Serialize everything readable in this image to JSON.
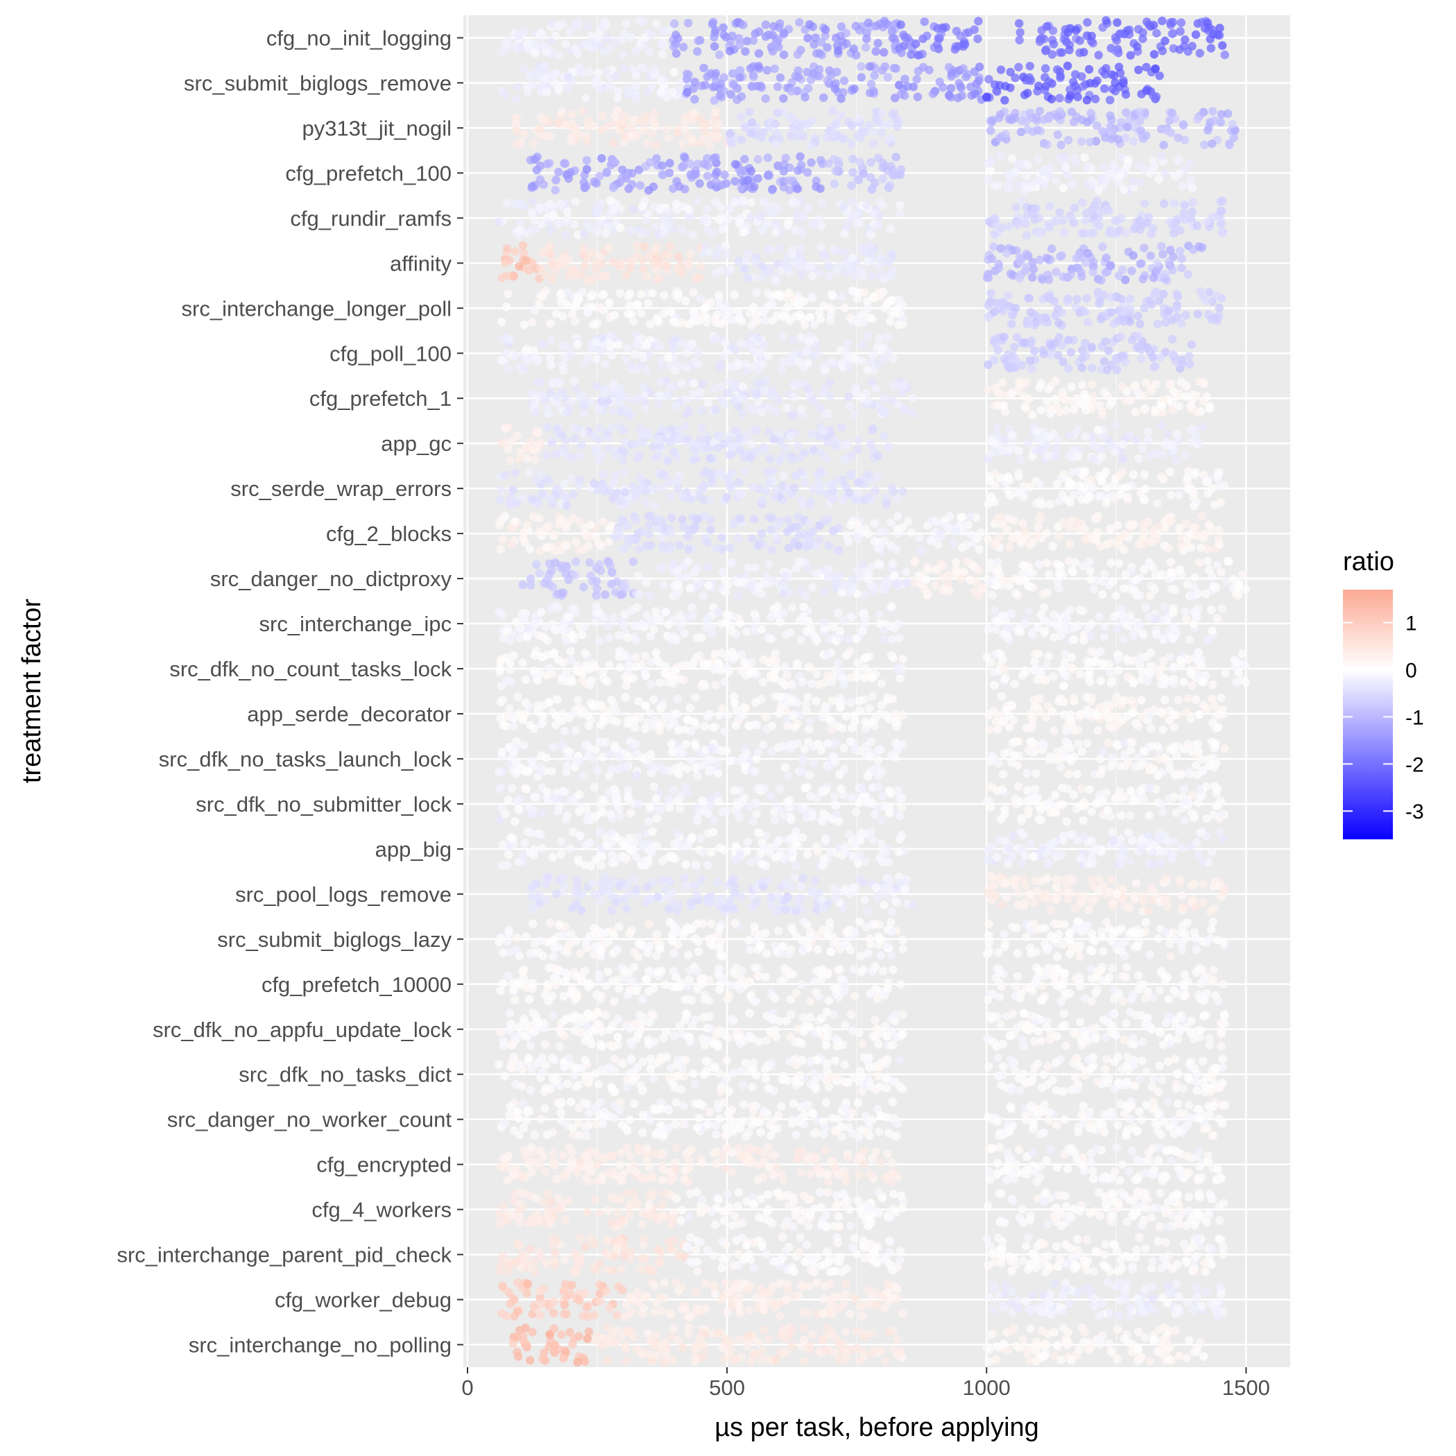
{
  "chart_data": {
    "type": "scatter",
    "title": "",
    "xlabel": "µs per task, before applying",
    "ylabel": "treatment factor",
    "xlim": [
      -8,
      1585
    ],
    "x_ticks": [
      0,
      500,
      1000,
      1500
    ],
    "x_tick_labels": [
      "0",
      "500",
      "1000",
      "1500"
    ],
    "grid": true,
    "background": "#ebebeb",
    "categories": [
      "cfg_no_init_logging",
      "src_submit_biglogs_remove",
      "py313t_jit_nogil",
      "cfg_prefetch_100",
      "cfg_rundir_ramfs",
      "affinity",
      "src_interchange_longer_poll",
      "cfg_poll_100",
      "cfg_prefetch_1",
      "app_gc",
      "src_serde_wrap_errors",
      "cfg_2_blocks",
      "src_danger_no_dictproxy",
      "src_interchange_ipc",
      "src_dfk_no_count_tasks_lock",
      "app_serde_decorator",
      "src_dfk_no_tasks_launch_lock",
      "src_dfk_no_submitter_lock",
      "app_big",
      "src_pool_logs_remove",
      "src_submit_biglogs_lazy",
      "cfg_prefetch_10000",
      "src_dfk_no_appfu_update_lock",
      "src_dfk_no_tasks_dict",
      "src_danger_no_worker_count",
      "cfg_encrypted",
      "cfg_4_workers",
      "src_interchange_parent_pid_check",
      "cfg_worker_debug",
      "src_interchange_no_polling"
    ],
    "clusters": [
      [
        {
          "x": [
            60,
            390
          ],
          "r": -0.2
        },
        {
          "x": [
            390,
            830
          ],
          "r": -1.4
        },
        {
          "x": [
            830,
            990
          ],
          "r": -1.8
        },
        {
          "x": [
            1060,
            1460
          ],
          "r": -2.1
        }
      ],
      [
        {
          "x": [
            60,
            420
          ],
          "r": -0.2
        },
        {
          "x": [
            420,
            830
          ],
          "r": -1.3
        },
        {
          "x": [
            830,
            1000
          ],
          "r": -1.5
        },
        {
          "x": [
            1000,
            1340
          ],
          "r": -2.2
        }
      ],
      [
        {
          "x": [
            90,
            500
          ],
          "r": 0.4
        },
        {
          "x": [
            500,
            840
          ],
          "r": -0.5
        },
        {
          "x": [
            1000,
            1480
          ],
          "r": -1.0
        }
      ],
      [
        {
          "x": [
            100,
            690
          ],
          "r": -1.3
        },
        {
          "x": [
            690,
            840
          ],
          "r": -0.8
        },
        {
          "x": [
            1000,
            1400
          ],
          "r": -0.2
        }
      ],
      [
        {
          "x": [
            60,
            840
          ],
          "r": -0.2
        },
        {
          "x": [
            1000,
            1460
          ],
          "r": -0.6
        }
      ],
      [
        {
          "x": [
            60,
            140
          ],
          "r": 1.1
        },
        {
          "x": [
            140,
            450
          ],
          "r": 0.5
        },
        {
          "x": [
            450,
            820
          ],
          "r": -0.3
        },
        {
          "x": [
            1000,
            1420
          ],
          "r": -1.0
        }
      ],
      [
        {
          "x": [
            60,
            840
          ],
          "r": 0.0
        },
        {
          "x": [
            1000,
            1460
          ],
          "r": -0.7
        }
      ],
      [
        {
          "x": [
            60,
            820
          ],
          "r": -0.2
        },
        {
          "x": [
            1000,
            1400
          ],
          "r": -0.7
        }
      ],
      [
        {
          "x": [
            110,
            870
          ],
          "r": -0.3
        },
        {
          "x": [
            1000,
            1430
          ],
          "r": 0.1
        }
      ],
      [
        {
          "x": [
            60,
            150
          ],
          "r": 0.3
        },
        {
          "x": [
            150,
            830
          ],
          "r": -0.4
        },
        {
          "x": [
            1000,
            1420
          ],
          "r": -0.2
        }
      ],
      [
        {
          "x": [
            60,
            840
          ],
          "r": -0.4
        },
        {
          "x": [
            1000,
            1460
          ],
          "r": 0.0
        }
      ],
      [
        {
          "x": [
            60,
            280
          ],
          "r": 0.2
        },
        {
          "x": [
            280,
            720
          ],
          "r": -0.5
        },
        {
          "x": [
            720,
            990
          ],
          "r": -0.1
        },
        {
          "x": [
            1000,
            1450
          ],
          "r": 0.2
        }
      ],
      [
        {
          "x": [
            100,
            320
          ],
          "r": -0.8
        },
        {
          "x": [
            320,
            850
          ],
          "r": -0.2
        },
        {
          "x": [
            850,
            1000
          ],
          "r": 0.2
        },
        {
          "x": [
            1000,
            1500
          ],
          "r": 0.0
        }
      ],
      [
        {
          "x": [
            60,
            840
          ],
          "r": -0.1
        },
        {
          "x": [
            1000,
            1460
          ],
          "r": -0.1
        }
      ],
      [
        {
          "x": [
            60,
            840
          ],
          "r": 0.0
        },
        {
          "x": [
            1000,
            1500
          ],
          "r": 0.0
        }
      ],
      [
        {
          "x": [
            60,
            840
          ],
          "r": 0.0
        },
        {
          "x": [
            1000,
            1460
          ],
          "r": 0.1
        }
      ],
      [
        {
          "x": [
            60,
            840
          ],
          "r": -0.1
        },
        {
          "x": [
            1000,
            1460
          ],
          "r": 0.0
        }
      ],
      [
        {
          "x": [
            60,
            840
          ],
          "r": -0.1
        },
        {
          "x": [
            1000,
            1460
          ],
          "r": 0.0
        }
      ],
      [
        {
          "x": [
            60,
            840
          ],
          "r": -0.1
        },
        {
          "x": [
            1000,
            1460
          ],
          "r": -0.2
        }
      ],
      [
        {
          "x": [
            120,
            700
          ],
          "r": -0.4
        },
        {
          "x": [
            700,
            860
          ],
          "r": -0.2
        },
        {
          "x": [
            1000,
            1460
          ],
          "r": 0.3
        }
      ],
      [
        {
          "x": [
            60,
            840
          ],
          "r": 0.0
        },
        {
          "x": [
            1000,
            1460
          ],
          "r": 0.0
        }
      ],
      [
        {
          "x": [
            60,
            840
          ],
          "r": 0.0
        },
        {
          "x": [
            1000,
            1460
          ],
          "r": 0.0
        }
      ],
      [
        {
          "x": [
            60,
            840
          ],
          "r": 0.0
        },
        {
          "x": [
            1000,
            1460
          ],
          "r": 0.0
        }
      ],
      [
        {
          "x": [
            60,
            840
          ],
          "r": 0.0
        },
        {
          "x": [
            1000,
            1460
          ],
          "r": 0.0
        }
      ],
      [
        {
          "x": [
            60,
            840
          ],
          "r": 0.0
        },
        {
          "x": [
            1000,
            1460
          ],
          "r": 0.0
        }
      ],
      [
        {
          "x": [
            60,
            840
          ],
          "r": 0.3
        },
        {
          "x": [
            1000,
            1460
          ],
          "r": 0.0
        }
      ],
      [
        {
          "x": [
            60,
            400
          ],
          "r": 0.4
        },
        {
          "x": [
            400,
            840
          ],
          "r": 0.0
        },
        {
          "x": [
            1000,
            1460
          ],
          "r": 0.0
        }
      ],
      [
        {
          "x": [
            60,
            420
          ],
          "r": 0.5
        },
        {
          "x": [
            420,
            840
          ],
          "r": 0.0
        },
        {
          "x": [
            1000,
            1460
          ],
          "r": 0.0
        }
      ],
      [
        {
          "x": [
            60,
            300
          ],
          "r": 1.0
        },
        {
          "x": [
            300,
            840
          ],
          "r": 0.3
        },
        {
          "x": [
            1000,
            1460
          ],
          "r": -0.2
        }
      ],
      [
        {
          "x": [
            80,
            240
          ],
          "r": 1.3
        },
        {
          "x": [
            240,
            840
          ],
          "r": 0.4
        },
        {
          "x": [
            1000,
            1420
          ],
          "r": 0.1
        }
      ]
    ],
    "legend": {
      "title": "ratio",
      "position": "right",
      "range": [
        -3.6,
        1.7
      ],
      "ticks": [
        1,
        0,
        -1,
        -2,
        -3
      ],
      "tick_labels": [
        "1",
        "0",
        "-1",
        "-2",
        "-3"
      ],
      "colors": {
        "high": "#fcaa93",
        "mid": "#ffffff",
        "low": "#0a00ff"
      }
    }
  }
}
